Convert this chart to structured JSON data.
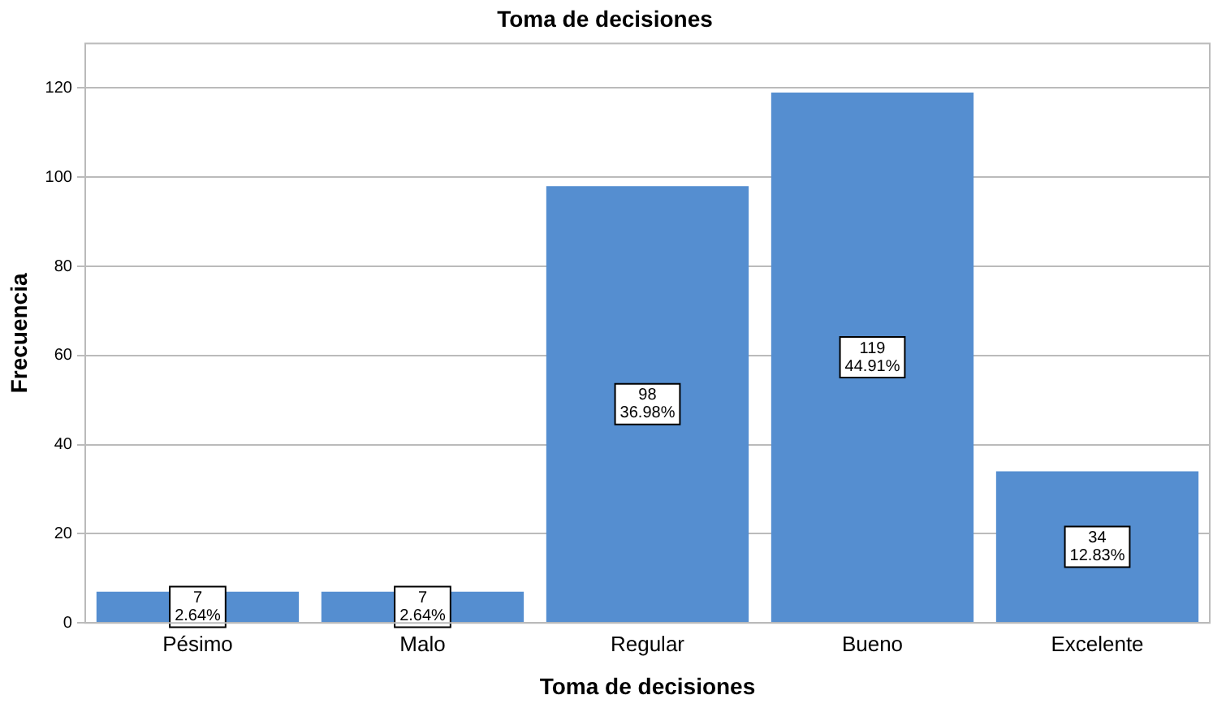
{
  "chart_data": {
    "type": "bar",
    "title": "Toma de decisiones",
    "xlabel": "Toma de decisiones",
    "ylabel": "Frecuencia",
    "categories": [
      "Pésimo",
      "Malo",
      "Regular",
      "Bueno",
      "Excelente"
    ],
    "values": [
      7,
      7,
      98,
      119,
      34
    ],
    "value_labels": [
      "7\n2.64%",
      "7\n2.64%",
      "98\n36.98%",
      "119\n44.91%",
      "34\n12.83%"
    ],
    "color": "#558ed0",
    "ylim": [
      0,
      130
    ],
    "yticks": [
      0,
      20,
      40,
      60,
      80,
      100,
      120
    ],
    "grid": "y"
  }
}
